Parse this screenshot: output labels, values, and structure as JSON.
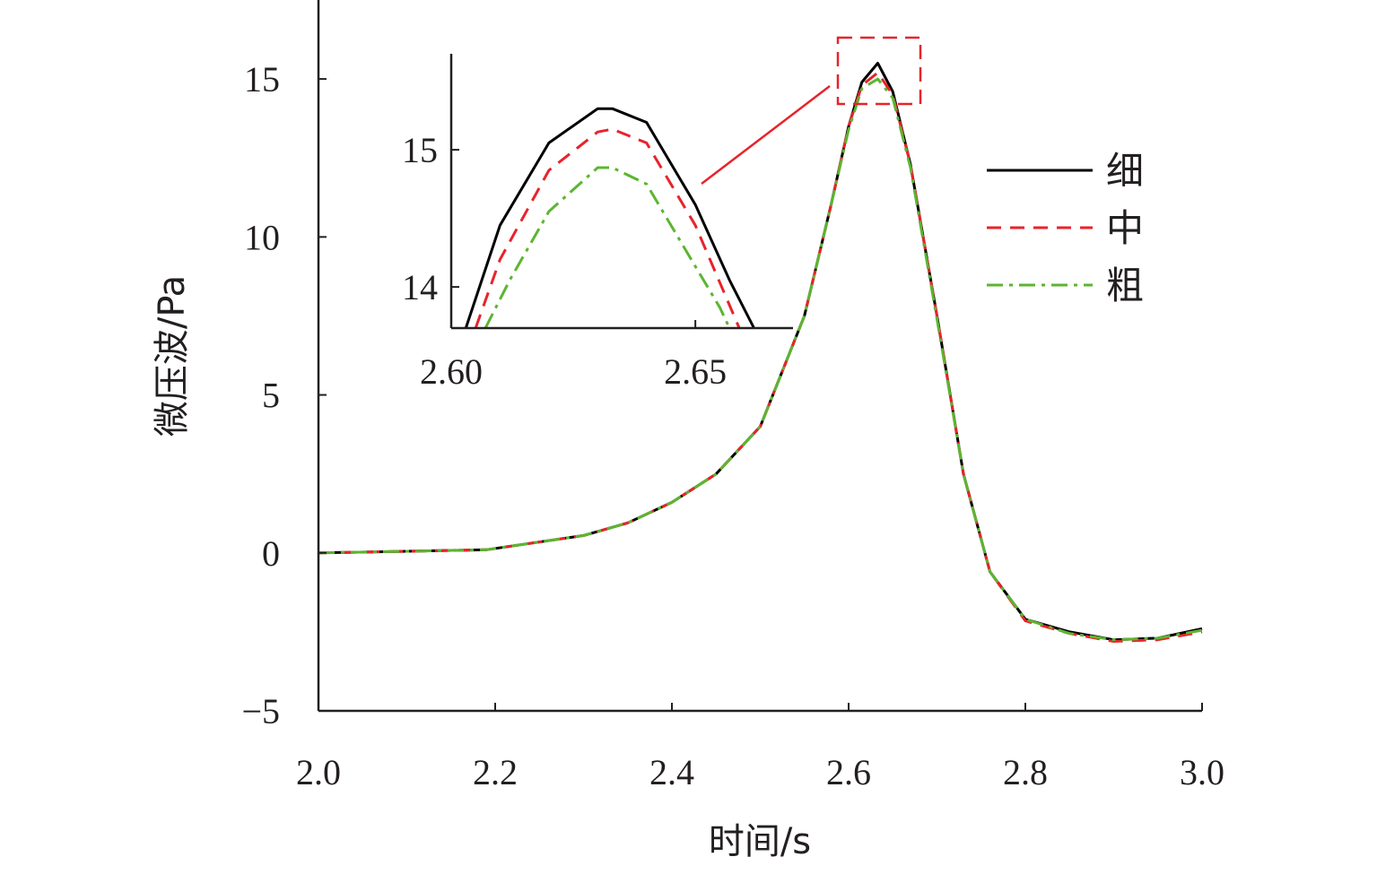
{
  "chart_data": [
    {
      "type": "line",
      "title": "",
      "xlabel": "时间/s",
      "ylabel": "微压波/Pa",
      "xlim": [
        2.0,
        3.0
      ],
      "ylim": [
        -5,
        17.5
      ],
      "xticks": [
        "2.0",
        "2.2",
        "2.4",
        "2.6",
        "2.8",
        "3.0"
      ],
      "yticks": [
        "−5",
        "0",
        "5",
        "10",
        "15"
      ],
      "grid": false,
      "legend_position": "right",
      "series": [
        {
          "name": "细",
          "color": "#000000",
          "style": "solid",
          "x": [
            2.0,
            2.1,
            2.19,
            2.3,
            2.35,
            2.4,
            2.45,
            2.5,
            2.55,
            2.58,
            2.6,
            2.615,
            2.633,
            2.65,
            2.67,
            2.7,
            2.73,
            2.76,
            2.8,
            2.85,
            2.9,
            2.95,
            3.0
          ],
          "y": [
            0.0,
            0.05,
            0.1,
            0.55,
            0.95,
            1.6,
            2.5,
            4.0,
            7.5,
            11.0,
            13.5,
            14.9,
            15.5,
            14.6,
            12.3,
            7.5,
            2.5,
            -0.6,
            -2.1,
            -2.5,
            -2.75,
            -2.7,
            -2.4
          ]
        },
        {
          "name": "中",
          "color": "#e8232b",
          "style": "dashed",
          "x": [
            2.0,
            2.1,
            2.19,
            2.3,
            2.35,
            2.4,
            2.45,
            2.5,
            2.55,
            2.58,
            2.6,
            2.615,
            2.633,
            2.65,
            2.67,
            2.7,
            2.73,
            2.76,
            2.8,
            2.85,
            2.9,
            2.95,
            3.0
          ],
          "y": [
            0.0,
            0.05,
            0.1,
            0.55,
            0.95,
            1.6,
            2.5,
            4.0,
            7.5,
            11.0,
            13.5,
            14.8,
            15.2,
            14.5,
            12.3,
            7.5,
            2.5,
            -0.6,
            -2.15,
            -2.55,
            -2.8,
            -2.75,
            -2.5
          ]
        },
        {
          "name": "粗",
          "color": "#5cb531",
          "style": "dashdot",
          "x": [
            2.0,
            2.1,
            2.19,
            2.3,
            2.35,
            2.4,
            2.45,
            2.5,
            2.55,
            2.58,
            2.6,
            2.615,
            2.633,
            2.65,
            2.67,
            2.7,
            2.73,
            2.76,
            2.8,
            2.85,
            2.9,
            2.95,
            3.0
          ],
          "y": [
            0.0,
            0.05,
            0.1,
            0.55,
            0.95,
            1.6,
            2.5,
            4.0,
            7.5,
            11.0,
            13.4,
            14.7,
            15.0,
            14.4,
            12.2,
            7.4,
            2.5,
            -0.6,
            -2.1,
            -2.55,
            -2.75,
            -2.7,
            -2.45
          ]
        }
      ]
    },
    {
      "type": "line",
      "title": "inset",
      "xlabel": "",
      "ylabel": "",
      "xlim": [
        2.6,
        2.67
      ],
      "ylim": [
        13.7,
        15.7
      ],
      "xticks": [
        "2.60",
        "2.65"
      ],
      "yticks": [
        "14",
        "15"
      ],
      "series": [
        {
          "name": "细",
          "color": "#000000",
          "style": "solid",
          "x": [
            2.603,
            2.61,
            2.62,
            2.63,
            2.633,
            2.64,
            2.65,
            2.657,
            2.662
          ],
          "y": [
            13.7,
            14.45,
            15.05,
            15.3,
            15.3,
            15.2,
            14.6,
            14.05,
            13.7
          ]
        },
        {
          "name": "中",
          "color": "#e8232b",
          "style": "dashed",
          "x": [
            2.605,
            2.61,
            2.62,
            2.63,
            2.633,
            2.64,
            2.65,
            2.656,
            2.659
          ],
          "y": [
            13.7,
            14.2,
            14.85,
            15.13,
            15.15,
            15.05,
            14.45,
            13.95,
            13.7
          ]
        },
        {
          "name": "粗",
          "color": "#5cb531",
          "style": "dashdot",
          "x": [
            2.607,
            2.612,
            2.62,
            2.63,
            2.633,
            2.64,
            2.65,
            2.655,
            2.657
          ],
          "y": [
            13.7,
            14.05,
            14.55,
            14.87,
            14.87,
            14.75,
            14.15,
            13.85,
            13.7
          ]
        }
      ]
    }
  ]
}
